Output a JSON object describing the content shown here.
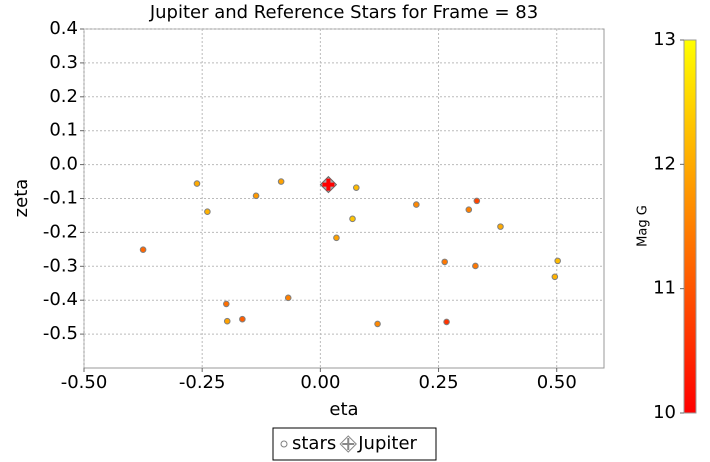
{
  "chart_data": {
    "type": "scatter",
    "title": "Jupiter and Reference Stars for Frame = 83",
    "xlabel": "eta",
    "ylabel": "zeta",
    "xlim": [
      -0.5,
      0.6
    ],
    "ylim": [
      -0.6,
      0.4
    ],
    "xticks": [
      {
        "value": -0.5,
        "label": "-0.50"
      },
      {
        "value": -0.25,
        "label": "-0.25"
      },
      {
        "value": 0,
        "label": "0.00"
      },
      {
        "value": 0.25,
        "label": "0.25"
      },
      {
        "value": 0.5,
        "label": "0.50"
      }
    ],
    "yticks": [
      0.4,
      0.3,
      0.2,
      0.1,
      {
        "value": 0,
        "label": "0.0"
      },
      -0.1,
      -0.2,
      -0.3,
      -0.4,
      -0.5
    ],
    "grid": true,
    "series": [
      {
        "name": "stars",
        "color": "#808080",
        "x": [
          -0.261,
          -0.239,
          -0.375,
          -0.136,
          -0.083,
          0.076,
          0.068,
          0.034,
          0.203,
          0.314,
          0.331,
          0.381,
          0.263,
          0.328,
          0.502,
          0.496,
          -0.199,
          -0.197,
          -0.165,
          -0.068,
          0.121,
          0.267
        ],
        "values": [
          -0.056,
          -0.139,
          -0.251,
          -0.092,
          -0.05,
          -0.068,
          -0.16,
          -0.216,
          -0.118,
          -0.133,
          -0.107,
          -0.183,
          -0.287,
          -0.299,
          -0.284,
          -0.331,
          -0.411,
          -0.462,
          -0.456,
          -0.393,
          -0.47,
          -0.464
        ],
        "mag": [
          12.0,
          12.1,
          11.2,
          11.8,
          11.9,
          12.2,
          12.3,
          11.9,
          11.6,
          11.5,
          10.8,
          12.0,
          11.4,
          11.4,
          12.2,
          12.1,
          11.3,
          11.9,
          11.1,
          11.5,
          11.6,
          10.6
        ]
      },
      {
        "name": "Jupiter",
        "color": "#ff0000",
        "x": [
          0.017
        ],
        "values": [
          -0.059
        ]
      }
    ],
    "colorbar": {
      "label": "Mag G",
      "clim": [
        10,
        13
      ],
      "ticks": [
        10,
        11,
        12,
        13
      ],
      "colormap": [
        "#ff0000",
        "#ffff00"
      ]
    }
  }
}
